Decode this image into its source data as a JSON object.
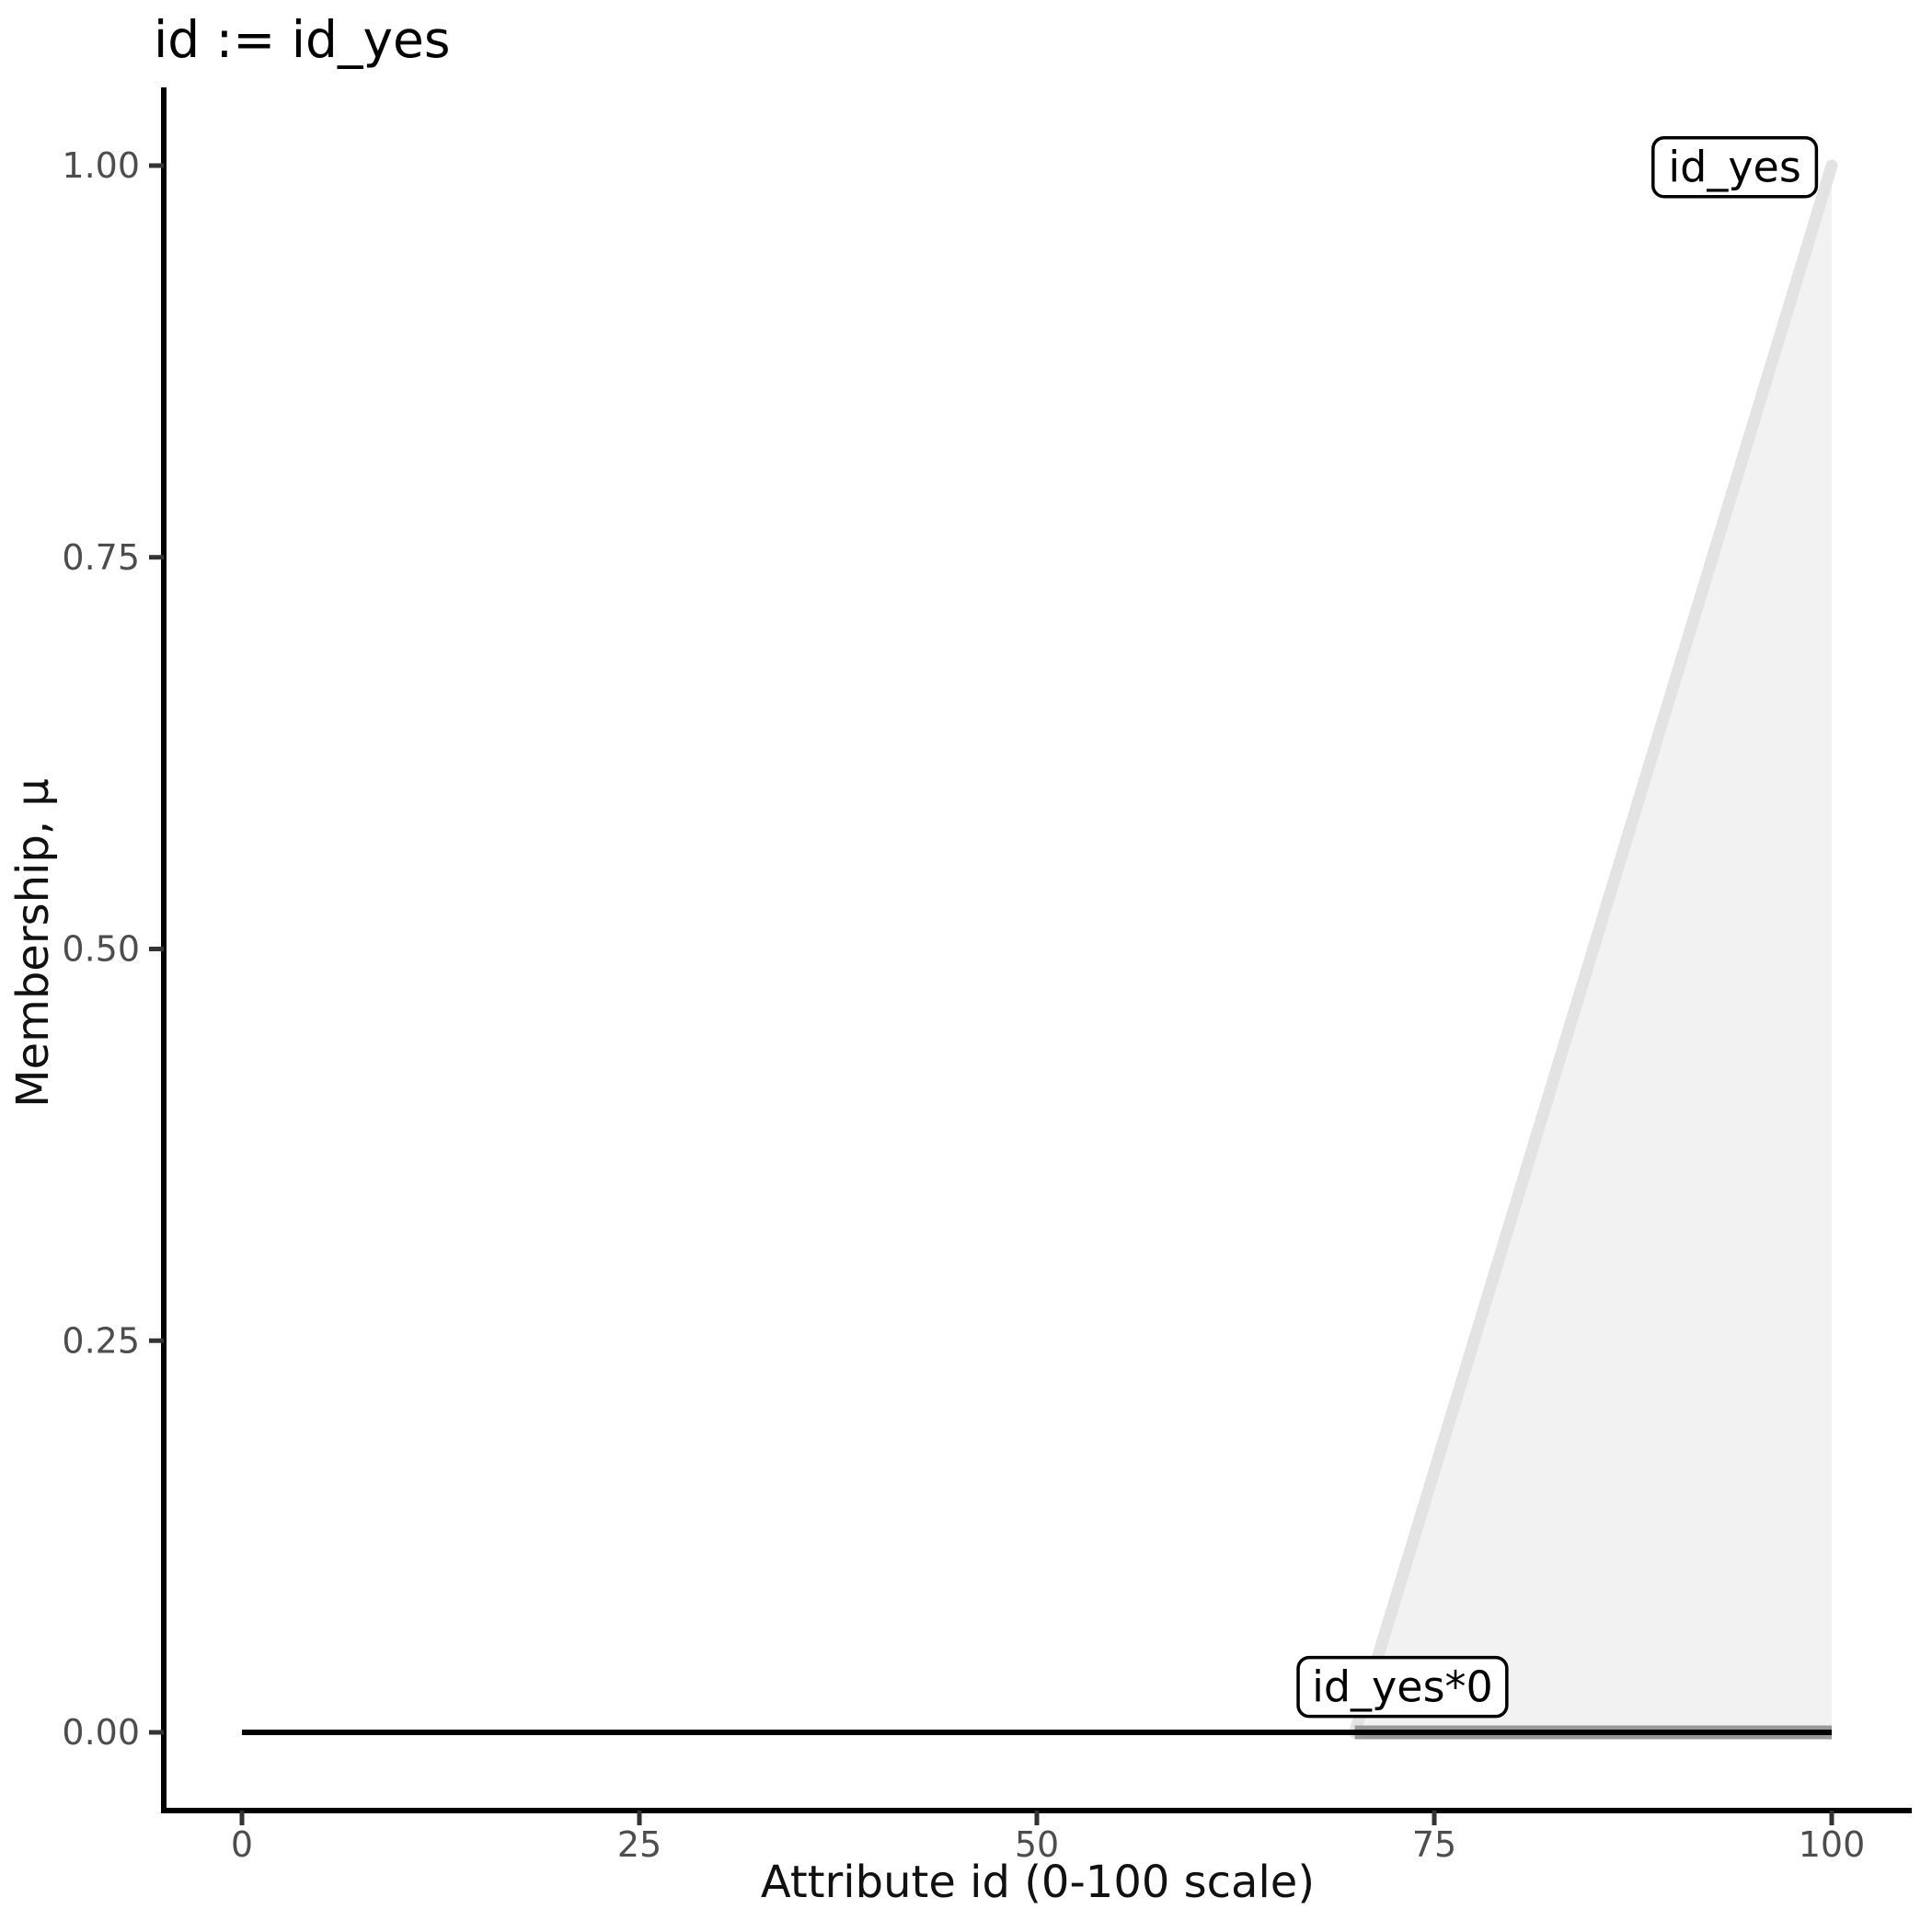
{
  "title": "id := id_yes",
  "chart_data": {
    "type": "area",
    "title": "id := id_yes",
    "xlabel": "Attribute id (0-100 scale)",
    "ylabel": "Membership, μ",
    "xlim": [
      0,
      100
    ],
    "ylim": [
      0,
      1
    ],
    "grid": false,
    "legend": "none",
    "xticks": {
      "values": [
        0,
        25,
        50,
        75,
        100
      ],
      "labels": [
        "0",
        "25",
        "50",
        "75",
        "100"
      ]
    },
    "yticks": {
      "values": [
        0,
        0.25,
        0.5,
        0.75,
        1
      ],
      "labels": [
        "0.00",
        "0.25",
        "0.50",
        "0.75",
        "1.00"
      ]
    },
    "series": [
      {
        "name": "id_yes membership function (triangular ramp, filled area)",
        "kind": "area",
        "fill_color": "#f2f2f2",
        "line_color": "#e3e3e3",
        "line_width": 13,
        "area_points": [
          [
            70,
            0
          ],
          [
            100,
            1
          ],
          [
            100,
            0
          ]
        ],
        "line_points": [
          [
            70,
            0
          ],
          [
            100,
            1
          ]
        ]
      },
      {
        "name": "id_yes*0 result segment",
        "kind": "line",
        "line_color": "#999999",
        "line_width": 15,
        "line_points": [
          [
            70,
            0
          ],
          [
            100,
            0
          ]
        ]
      },
      {
        "name": "zero baseline result",
        "kind": "line",
        "line_color": "#000000",
        "line_width": 6,
        "line_points": [
          [
            0,
            0
          ],
          [
            100,
            0
          ]
        ]
      }
    ],
    "annotations": [
      {
        "label": "id_yes",
        "x": 93.9,
        "y": 0.999
      },
      {
        "label": "id_yes*0",
        "x": 73.0,
        "y": 0.029
      }
    ],
    "colors": {
      "background": "#ffffff",
      "axis_line": "#000000",
      "tick_mark": "#333333",
      "tick_label": "#4d4d4d",
      "annotation_box_fill": "#ffffff",
      "annotation_box_border": "#000000"
    }
  }
}
